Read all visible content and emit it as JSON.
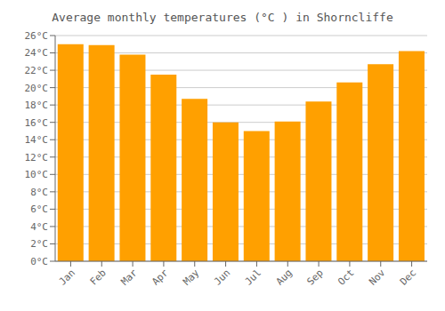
{
  "chart_data": {
    "type": "bar",
    "title": "Average monthly temperatures (°C ) in Shorncliffe",
    "categories": [
      "Jan",
      "Feb",
      "Mar",
      "Apr",
      "May",
      "Jun",
      "Jul",
      "Aug",
      "Sep",
      "Oct",
      "Nov",
      "Dec"
    ],
    "values": [
      25.0,
      24.9,
      23.8,
      21.5,
      18.7,
      16.0,
      15.0,
      16.1,
      18.4,
      20.6,
      22.7,
      24.2
    ],
    "color": "#FFA000",
    "ylim": [
      0,
      26
    ],
    "yticks": [
      {
        "value": 0,
        "label": "0°C"
      },
      {
        "value": 2,
        "label": "2°C"
      },
      {
        "value": 4,
        "label": "4°C"
      },
      {
        "value": 6,
        "label": "6°C"
      },
      {
        "value": 8,
        "label": "8°C"
      },
      {
        "value": 10,
        "label": "10°C"
      },
      {
        "value": 12,
        "label": "12°C"
      },
      {
        "value": 14,
        "label": "14°C"
      },
      {
        "value": 16,
        "label": "16°C"
      },
      {
        "value": 18,
        "label": "18°C"
      },
      {
        "value": 20,
        "label": "20°C"
      },
      {
        "value": 22,
        "label": "22°C"
      },
      {
        "value": 24,
        "label": "24°C"
      },
      {
        "value": 26,
        "label": "26°C"
      }
    ],
    "grid": true
  }
}
